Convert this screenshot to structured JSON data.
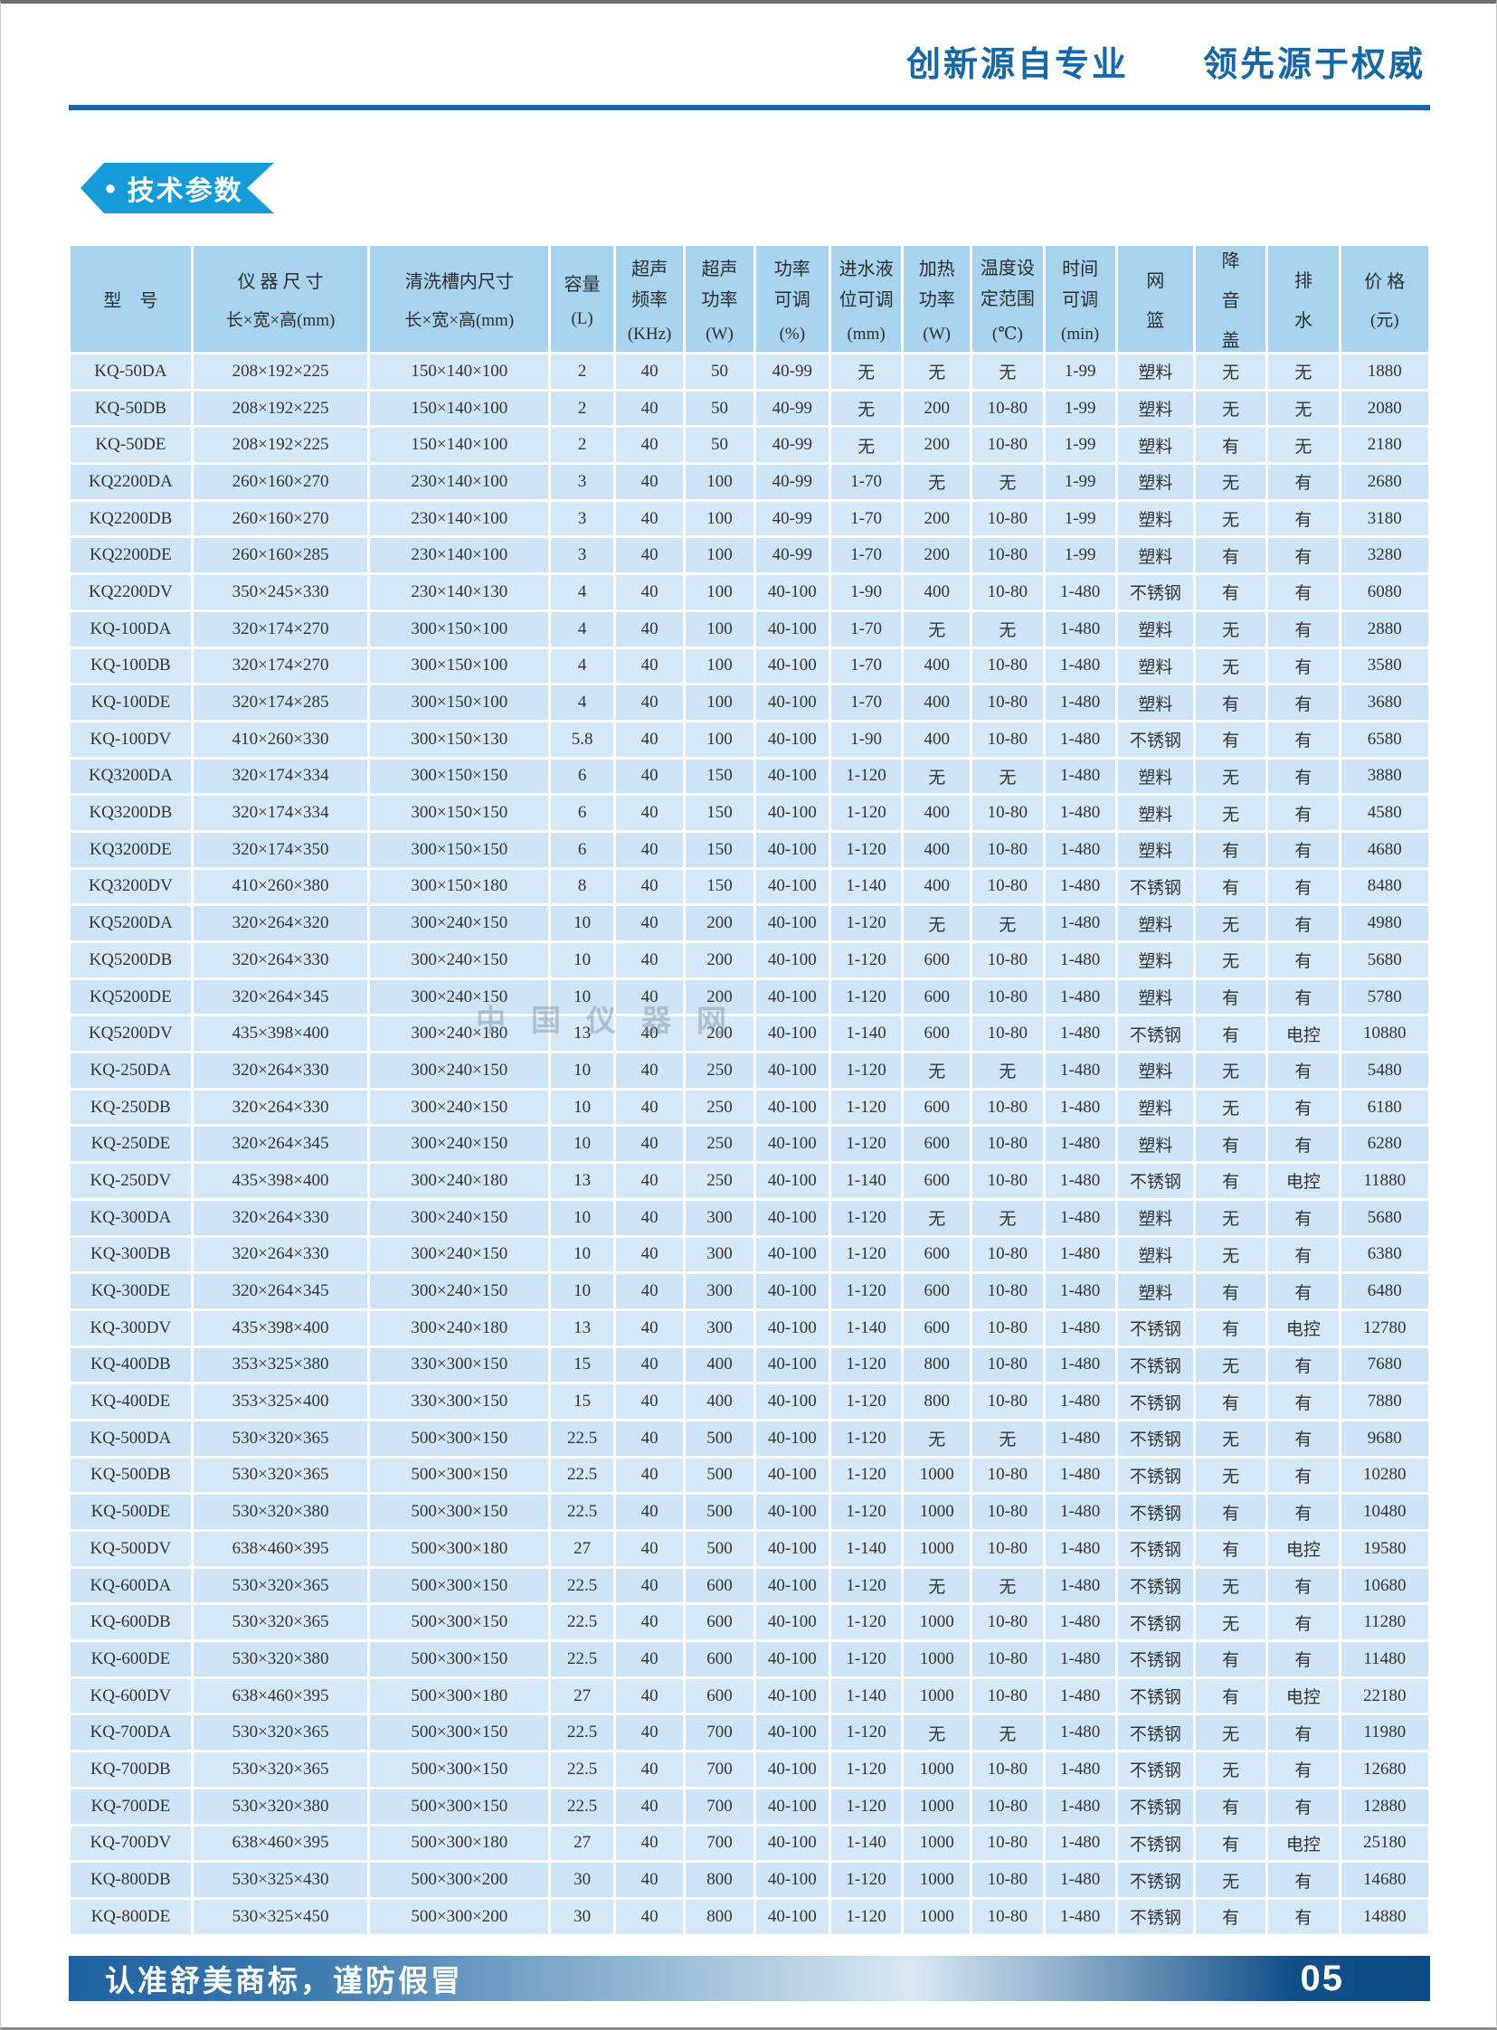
{
  "page": {
    "top_slogan": "创新源自专业　　领先源于权威",
    "section_badge": "技术参数",
    "footer_note": "认准舒美商标，谨防假冒",
    "page_number": "05",
    "watermark": "中国仪器网"
  },
  "colors": {
    "slogan_blue": "#1766A6",
    "badge_blue": "#159BD8",
    "header_cell_blue": "#A7D3EE",
    "row_blue_light": "#D5E8F8",
    "row_blue_dark": "#CDE4F6",
    "footer_dark_blue": "#0C4A82",
    "footer_light_blue": "#D9E7F1"
  },
  "table": {
    "headers": [
      {
        "lines": [
          "型　号"
        ],
        "unit": ""
      },
      {
        "lines": [
          "仪 器 尺 寸"
        ],
        "unit": "长×宽×高(mm)"
      },
      {
        "lines": [
          "清洗槽内尺寸"
        ],
        "unit": "长×宽×高(mm)"
      },
      {
        "lines": [
          "容量"
        ],
        "unit": "(L)"
      },
      {
        "lines": [
          "超声",
          "频率"
        ],
        "unit": "(KHz)"
      },
      {
        "lines": [
          "超声",
          "功率"
        ],
        "unit": "(W)"
      },
      {
        "lines": [
          "功率",
          "可调"
        ],
        "unit": "(%)"
      },
      {
        "lines": [
          "进水液",
          "位可调"
        ],
        "unit": "(mm)"
      },
      {
        "lines": [
          "加热",
          "功率"
        ],
        "unit": "(W)"
      },
      {
        "lines": [
          "温度设",
          "定范围"
        ],
        "unit": "(℃)"
      },
      {
        "lines": [
          "时间",
          "可调"
        ],
        "unit": "(min)"
      },
      {
        "lines": [
          "网",
          "篮"
        ],
        "unit": ""
      },
      {
        "lines": [
          "降",
          "音",
          "盖"
        ],
        "unit": ""
      },
      {
        "lines": [
          "排",
          "水"
        ],
        "unit": ""
      },
      {
        "lines": [
          "价 格"
        ],
        "unit": "(元)"
      }
    ],
    "rows": [
      [
        "KQ-50DA",
        "208×192×225",
        "150×140×100",
        "2",
        "40",
        "50",
        "40-99",
        "无",
        "无",
        "无",
        "1-99",
        "塑料",
        "无",
        "无",
        "1880"
      ],
      [
        "KQ-50DB",
        "208×192×225",
        "150×140×100",
        "2",
        "40",
        "50",
        "40-99",
        "无",
        "200",
        "10-80",
        "1-99",
        "塑料",
        "无",
        "无",
        "2080"
      ],
      [
        "KQ-50DE",
        "208×192×225",
        "150×140×100",
        "2",
        "40",
        "50",
        "40-99",
        "无",
        "200",
        "10-80",
        "1-99",
        "塑料",
        "有",
        "无",
        "2180"
      ],
      [
        "KQ2200DA",
        "260×160×270",
        "230×140×100",
        "3",
        "40",
        "100",
        "40-99",
        "1-70",
        "无",
        "无",
        "1-99",
        "塑料",
        "无",
        "有",
        "2680"
      ],
      [
        "KQ2200DB",
        "260×160×270",
        "230×140×100",
        "3",
        "40",
        "100",
        "40-99",
        "1-70",
        "200",
        "10-80",
        "1-99",
        "塑料",
        "无",
        "有",
        "3180"
      ],
      [
        "KQ2200DE",
        "260×160×285",
        "230×140×100",
        "3",
        "40",
        "100",
        "40-99",
        "1-70",
        "200",
        "10-80",
        "1-99",
        "塑料",
        "有",
        "有",
        "3280"
      ],
      [
        "KQ2200DV",
        "350×245×330",
        "230×140×130",
        "4",
        "40",
        "100",
        "40-100",
        "1-90",
        "400",
        "10-80",
        "1-480",
        "不锈钢",
        "有",
        "有",
        "6080"
      ],
      [
        "KQ-100DA",
        "320×174×270",
        "300×150×100",
        "4",
        "40",
        "100",
        "40-100",
        "1-70",
        "无",
        "无",
        "1-480",
        "塑料",
        "无",
        "有",
        "2880"
      ],
      [
        "KQ-100DB",
        "320×174×270",
        "300×150×100",
        "4",
        "40",
        "100",
        "40-100",
        "1-70",
        "400",
        "10-80",
        "1-480",
        "塑料",
        "无",
        "有",
        "3580"
      ],
      [
        "KQ-100DE",
        "320×174×285",
        "300×150×100",
        "4",
        "40",
        "100",
        "40-100",
        "1-70",
        "400",
        "10-80",
        "1-480",
        "塑料",
        "有",
        "有",
        "3680"
      ],
      [
        "KQ-100DV",
        "410×260×330",
        "300×150×130",
        "5.8",
        "40",
        "100",
        "40-100",
        "1-90",
        "400",
        "10-80",
        "1-480",
        "不锈钢",
        "有",
        "有",
        "6580"
      ],
      [
        "KQ3200DA",
        "320×174×334",
        "300×150×150",
        "6",
        "40",
        "150",
        "40-100",
        "1-120",
        "无",
        "无",
        "1-480",
        "塑料",
        "无",
        "有",
        "3880"
      ],
      [
        "KQ3200DB",
        "320×174×334",
        "300×150×150",
        "6",
        "40",
        "150",
        "40-100",
        "1-120",
        "400",
        "10-80",
        "1-480",
        "塑料",
        "无",
        "有",
        "4580"
      ],
      [
        "KQ3200DE",
        "320×174×350",
        "300×150×150",
        "6",
        "40",
        "150",
        "40-100",
        "1-120",
        "400",
        "10-80",
        "1-480",
        "塑料",
        "有",
        "有",
        "4680"
      ],
      [
        "KQ3200DV",
        "410×260×380",
        "300×150×180",
        "8",
        "40",
        "150",
        "40-100",
        "1-140",
        "400",
        "10-80",
        "1-480",
        "不锈钢",
        "有",
        "有",
        "8480"
      ],
      [
        "KQ5200DA",
        "320×264×320",
        "300×240×150",
        "10",
        "40",
        "200",
        "40-100",
        "1-120",
        "无",
        "无",
        "1-480",
        "塑料",
        "无",
        "有",
        "4980"
      ],
      [
        "KQ5200DB",
        "320×264×330",
        "300×240×150",
        "10",
        "40",
        "200",
        "40-100",
        "1-120",
        "600",
        "10-80",
        "1-480",
        "塑料",
        "无",
        "有",
        "5680"
      ],
      [
        "KQ5200DE",
        "320×264×345",
        "300×240×150",
        "10",
        "40",
        "200",
        "40-100",
        "1-120",
        "600",
        "10-80",
        "1-480",
        "塑料",
        "有",
        "有",
        "5780"
      ],
      [
        "KQ5200DV",
        "435×398×400",
        "300×240×180",
        "13",
        "40",
        "200",
        "40-100",
        "1-140",
        "600",
        "10-80",
        "1-480",
        "不锈钢",
        "有",
        "电控",
        "10880"
      ],
      [
        "KQ-250DA",
        "320×264×330",
        "300×240×150",
        "10",
        "40",
        "250",
        "40-100",
        "1-120",
        "无",
        "无",
        "1-480",
        "塑料",
        "无",
        "有",
        "5480"
      ],
      [
        "KQ-250DB",
        "320×264×330",
        "300×240×150",
        "10",
        "40",
        "250",
        "40-100",
        "1-120",
        "600",
        "10-80",
        "1-480",
        "塑料",
        "无",
        "有",
        "6180"
      ],
      [
        "KQ-250DE",
        "320×264×345",
        "300×240×150",
        "10",
        "40",
        "250",
        "40-100",
        "1-120",
        "600",
        "10-80",
        "1-480",
        "塑料",
        "有",
        "有",
        "6280"
      ],
      [
        "KQ-250DV",
        "435×398×400",
        "300×240×180",
        "13",
        "40",
        "250",
        "40-100",
        "1-140",
        "600",
        "10-80",
        "1-480",
        "不锈钢",
        "有",
        "电控",
        "11880"
      ],
      [
        "KQ-300DA",
        "320×264×330",
        "300×240×150",
        "10",
        "40",
        "300",
        "40-100",
        "1-120",
        "无",
        "无",
        "1-480",
        "塑料",
        "无",
        "有",
        "5680"
      ],
      [
        "KQ-300DB",
        "320×264×330",
        "300×240×150",
        "10",
        "40",
        "300",
        "40-100",
        "1-120",
        "600",
        "10-80",
        "1-480",
        "塑料",
        "无",
        "有",
        "6380"
      ],
      [
        "KQ-300DE",
        "320×264×345",
        "300×240×150",
        "10",
        "40",
        "300",
        "40-100",
        "1-120",
        "600",
        "10-80",
        "1-480",
        "塑料",
        "有",
        "有",
        "6480"
      ],
      [
        "KQ-300DV",
        "435×398×400",
        "300×240×180",
        "13",
        "40",
        "300",
        "40-100",
        "1-140",
        "600",
        "10-80",
        "1-480",
        "不锈钢",
        "有",
        "电控",
        "12780"
      ],
      [
        "KQ-400DB",
        "353×325×380",
        "330×300×150",
        "15",
        "40",
        "400",
        "40-100",
        "1-120",
        "800",
        "10-80",
        "1-480",
        "不锈钢",
        "无",
        "有",
        "7680"
      ],
      [
        "KQ-400DE",
        "353×325×400",
        "330×300×150",
        "15",
        "40",
        "400",
        "40-100",
        "1-120",
        "800",
        "10-80",
        "1-480",
        "不锈钢",
        "有",
        "有",
        "7880"
      ],
      [
        "KQ-500DA",
        "530×320×365",
        "500×300×150",
        "22.5",
        "40",
        "500",
        "40-100",
        "1-120",
        "无",
        "无",
        "1-480",
        "不锈钢",
        "无",
        "有",
        "9680"
      ],
      [
        "KQ-500DB",
        "530×320×365",
        "500×300×150",
        "22.5",
        "40",
        "500",
        "40-100",
        "1-120",
        "1000",
        "10-80",
        "1-480",
        "不锈钢",
        "无",
        "有",
        "10280"
      ],
      [
        "KQ-500DE",
        "530×320×380",
        "500×300×150",
        "22.5",
        "40",
        "500",
        "40-100",
        "1-120",
        "1000",
        "10-80",
        "1-480",
        "不锈钢",
        "有",
        "有",
        "10480"
      ],
      [
        "KQ-500DV",
        "638×460×395",
        "500×300×180",
        "27",
        "40",
        "500",
        "40-100",
        "1-140",
        "1000",
        "10-80",
        "1-480",
        "不锈钢",
        "有",
        "电控",
        "19580"
      ],
      [
        "KQ-600DA",
        "530×320×365",
        "500×300×150",
        "22.5",
        "40",
        "600",
        "40-100",
        "1-120",
        "无",
        "无",
        "1-480",
        "不锈钢",
        "无",
        "有",
        "10680"
      ],
      [
        "KQ-600DB",
        "530×320×365",
        "500×300×150",
        "22.5",
        "40",
        "600",
        "40-100",
        "1-120",
        "1000",
        "10-80",
        "1-480",
        "不锈钢",
        "无",
        "有",
        "11280"
      ],
      [
        "KQ-600DE",
        "530×320×380",
        "500×300×150",
        "22.5",
        "40",
        "600",
        "40-100",
        "1-120",
        "1000",
        "10-80",
        "1-480",
        "不锈钢",
        "有",
        "有",
        "11480"
      ],
      [
        "KQ-600DV",
        "638×460×395",
        "500×300×180",
        "27",
        "40",
        "600",
        "40-100",
        "1-140",
        "1000",
        "10-80",
        "1-480",
        "不锈钢",
        "有",
        "电控",
        "22180"
      ],
      [
        "KQ-700DA",
        "530×320×365",
        "500×300×150",
        "22.5",
        "40",
        "700",
        "40-100",
        "1-120",
        "无",
        "无",
        "1-480",
        "不锈钢",
        "无",
        "有",
        "11980"
      ],
      [
        "KQ-700DB",
        "530×320×365",
        "500×300×150",
        "22.5",
        "40",
        "700",
        "40-100",
        "1-120",
        "1000",
        "10-80",
        "1-480",
        "不锈钢",
        "无",
        "有",
        "12680"
      ],
      [
        "KQ-700DE",
        "530×320×380",
        "500×300×150",
        "22.5",
        "40",
        "700",
        "40-100",
        "1-120",
        "1000",
        "10-80",
        "1-480",
        "不锈钢",
        "有",
        "有",
        "12880"
      ],
      [
        "KQ-700DV",
        "638×460×395",
        "500×300×180",
        "27",
        "40",
        "700",
        "40-100",
        "1-140",
        "1000",
        "10-80",
        "1-480",
        "不锈钢",
        "有",
        "电控",
        "25180"
      ],
      [
        "KQ-800DB",
        "530×325×430",
        "500×300×200",
        "30",
        "40",
        "800",
        "40-100",
        "1-120",
        "1000",
        "10-80",
        "1-480",
        "不锈钢",
        "无",
        "有",
        "14680"
      ],
      [
        "KQ-800DE",
        "530×325×450",
        "500×300×200",
        "30",
        "40",
        "800",
        "40-100",
        "1-120",
        "1000",
        "10-80",
        "1-480",
        "不锈钢",
        "有",
        "有",
        "14880"
      ]
    ]
  }
}
